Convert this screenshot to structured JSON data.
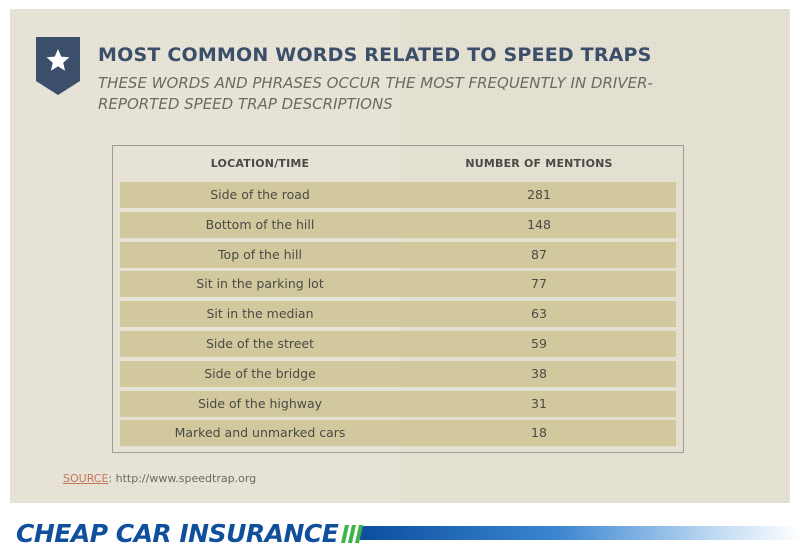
{
  "header": {
    "title": "MOST COMMON WORDS RELATED TO SPEED TRAPS",
    "subtitle": "THESE WORDS AND PHRASES OCCUR THE MOST FREQUENTLY IN DRIVER-REPORTED SPEED TRAP DESCRIPTIONS",
    "badge_icon": "star-icon"
  },
  "chart_data": {
    "type": "table",
    "columns": [
      "LOCATION/TIME",
      "NUMBER OF MENTIONS"
    ],
    "rows": [
      {
        "location": "Side of the road",
        "mentions": "281"
      },
      {
        "location": "Bottom of the hill",
        "mentions": "148"
      },
      {
        "location": "Top of the hill",
        "mentions": "87"
      },
      {
        "location": "Sit in the parking lot",
        "mentions": "77"
      },
      {
        "location": "Sit in the median",
        "mentions": "63"
      },
      {
        "location": "Side of the street",
        "mentions": "59"
      },
      {
        "location": "Side of the bridge",
        "mentions": "38"
      },
      {
        "location": "Side of the highway",
        "mentions": "31"
      },
      {
        "location": "Marked and unmarked cars",
        "mentions": "18"
      }
    ]
  },
  "source": {
    "label": "SOURCE",
    "url": "http://www.speedtrap.org"
  },
  "footer": {
    "logo_text": "CHEAP CAR INSURANCE"
  },
  "colors": {
    "title": "#3b4f6b",
    "badge": "#3b4f6b",
    "row_fill": "#d1c99d",
    "panel": "#e5e1d3",
    "brand_blue": "#0f4f9b",
    "brand_green": "#3db34a",
    "source_label": "#c4795a"
  }
}
